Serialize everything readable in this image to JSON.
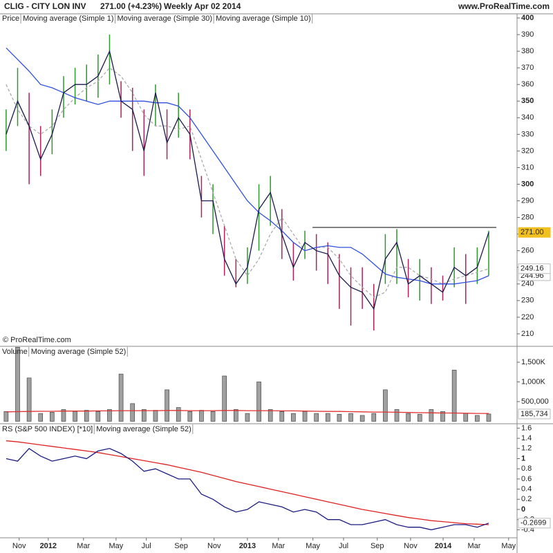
{
  "header": {
    "symbol": "CLIG - CITY LON INV",
    "change": "271.00 (+4.23%)",
    "period": "Weekly",
    "date": "Apr 02 2014",
    "site": "www.ProRealTime.com",
    "copyright": "© ProRealTime.com"
  },
  "chart_data": [
    {
      "type": "ohlc",
      "price_label": "Price",
      "x": [
        -11,
        -8,
        -5,
        -2,
        1,
        4,
        7,
        10,
        13,
        16,
        19,
        22,
        25,
        28,
        31,
        34,
        37,
        40,
        43,
        46,
        49,
        52,
        55,
        58,
        61,
        64,
        67,
        70,
        73,
        76,
        79,
        82,
        85,
        88,
        91,
        94,
        97,
        100,
        103,
        106,
        109,
        112,
        115
      ],
      "xlim": [
        -12.6,
        122.4
      ],
      "xticks": [
        {
          "value": -7.6,
          "label": "Nov"
        },
        {
          "value": 0,
          "label": "2012"
        },
        {
          "value": 9.2,
          "label": "Mar"
        },
        {
          "value": 17.7,
          "label": "May"
        },
        {
          "value": 25.6,
          "label": "Jul"
        },
        {
          "value": 34.7,
          "label": "Sep"
        },
        {
          "value": 43.3,
          "label": "Nov"
        },
        {
          "value": 52,
          "label": "2013"
        },
        {
          "value": 60.1,
          "label": "Mar"
        },
        {
          "value": 69.1,
          "label": "May"
        },
        {
          "value": 77.1,
          "label": "Jul"
        },
        {
          "value": 85.9,
          "label": "Sep"
        },
        {
          "value": 94.6,
          "label": "Nov"
        },
        {
          "value": 103.1,
          "label": "2014"
        },
        {
          "value": 111.2,
          "label": "Mar"
        },
        {
          "value": 120.2,
          "label": "May"
        }
      ],
      "high": [
        345,
        370,
        355,
        335,
        345,
        365,
        370,
        372,
        378,
        390,
        362,
        358,
        345,
        360,
        345,
        355,
        345,
        305,
        300,
        275,
        255,
        262,
        300,
        305,
        285,
        265,
        272,
        270,
        265,
        258,
        250,
        250,
        240,
        270,
        273,
        255,
        255,
        250,
        245,
        262,
        258,
        262,
        272
      ],
      "low": [
        320,
        335,
        300,
        305,
        318,
        340,
        348,
        350,
        352,
        360,
        340,
        320,
        305,
        335,
        315,
        328,
        315,
        280,
        270,
        245,
        238,
        240,
        260,
        275,
        255,
        242,
        255,
        248,
        240,
        225,
        215,
        225,
        212,
        240,
        240,
        232,
        230,
        228,
        230,
        238,
        228,
        240,
        245
      ],
      "up_color": "#2a9a2a",
      "down_color": "#b0205a",
      "ylim": [
        202.9,
        402.5
      ],
      "yticks": [
        210,
        220,
        230,
        240,
        250,
        260,
        270,
        280,
        290,
        300,
        310,
        320,
        330,
        340,
        350,
        360,
        370,
        380,
        390,
        400
      ],
      "resistance": {
        "value": 274,
        "from": 69,
        "to": 117
      },
      "series": [
        {
          "name": "Moving average (Simple 1)",
          "color": "#1a1a4d",
          "values": [
            330,
            350,
            335,
            315,
            330,
            355,
            360,
            360,
            365,
            380,
            350,
            345,
            320,
            355,
            325,
            340,
            330,
            290,
            290,
            255,
            240,
            250,
            285,
            295,
            270,
            250,
            265,
            260,
            258,
            245,
            238,
            235,
            225,
            255,
            265,
            240,
            245,
            240,
            235,
            250,
            245,
            250,
            271
          ],
          "last_label": "271.00"
        },
        {
          "name": "Moving average (Simple 30)",
          "color": "#3050e0",
          "values": [
            382,
            375,
            368,
            360,
            358,
            355,
            352,
            350,
            348,
            350,
            350,
            350,
            350,
            349,
            349,
            347,
            340,
            330,
            320,
            310,
            300,
            290,
            283,
            278,
            272,
            265,
            260,
            262,
            263,
            262,
            262,
            258,
            252,
            246,
            244,
            243,
            242,
            240,
            240,
            240,
            241,
            242,
            244.96
          ],
          "last_label": "244.96"
        },
        {
          "name": "Moving average (Simple 10)",
          "color": "#aaaaaa",
          "dashed": true,
          "values": [
            360,
            345,
            335,
            330,
            335,
            345,
            352,
            358,
            362,
            370,
            365,
            355,
            342,
            335,
            335,
            333,
            335,
            315,
            295,
            275,
            255,
            245,
            255,
            270,
            280,
            270,
            260,
            262,
            262,
            255,
            245,
            238,
            232,
            235,
            250,
            250,
            245,
            243,
            240,
            243,
            245,
            247,
            249.16
          ],
          "last_label": "249.16"
        }
      ]
    },
    {
      "type": "volume",
      "label": "Volume",
      "bar_color": "#a0a0a0",
      "ylim": [
        -44000,
        1886000
      ],
      "yticks": [
        {
          "value": 500000,
          "label": "500,000"
        },
        {
          "value": 1000000,
          "label": "1,000K"
        },
        {
          "value": 1500000,
          "label": "1,500K"
        }
      ],
      "values": [
        250000,
        1880000,
        1100000,
        200000,
        230000,
        300000,
        250000,
        280000,
        250000,
        300000,
        1200000,
        450000,
        300000,
        280000,
        800000,
        350000,
        250000,
        280000,
        250000,
        1150000,
        300000,
        200000,
        1000000,
        300000,
        250000,
        200000,
        250000,
        200000,
        200000,
        180000,
        200000,
        150000,
        200000,
        800000,
        300000,
        200000,
        180000,
        300000,
        250000,
        1300000,
        200000,
        150000,
        185734
      ],
      "last_label": "185,734",
      "series": [
        {
          "name": "Moving average (Simple 52)",
          "color": "#e03030",
          "values": [
            240000,
            245000,
            250000,
            255000,
            255000,
            260000,
            260000,
            260000,
            265000,
            265000,
            270000,
            270000,
            270000,
            270000,
            275000,
            275000,
            270000,
            270000,
            270000,
            275000,
            275000,
            270000,
            270000,
            270000,
            265000,
            265000,
            260000,
            255000,
            250000,
            250000,
            245000,
            240000,
            235000,
            235000,
            230000,
            225000,
            220000,
            215000,
            210000,
            210000,
            205000,
            200000,
            200000
          ]
        }
      ]
    },
    {
      "type": "line",
      "ylim": [
        -0.558,
        1.673
      ],
      "yticks": [
        -0.4,
        -0.2,
        0,
        0.2,
        0.4,
        0.6,
        0.8,
        1,
        1.2,
        1.4,
        1.6
      ],
      "series": [
        {
          "name": "RS (S&P 500 INDEX) [*10]",
          "color": "#1a1a80",
          "values": [
            1.0,
            0.95,
            1.2,
            1.05,
            0.95,
            1.0,
            1.05,
            1.0,
            1.15,
            1.2,
            1.1,
            0.95,
            0.75,
            0.8,
            0.7,
            0.6,
            0.6,
            0.3,
            0.2,
            0.05,
            -0.05,
            0,
            0.15,
            0.1,
            0.05,
            -0.05,
            0,
            -0.05,
            -0.2,
            -0.2,
            -0.3,
            -0.3,
            -0.25,
            -0.2,
            -0.3,
            -0.35,
            -0.35,
            -0.4,
            -0.35,
            -0.3,
            -0.3,
            -0.35,
            -0.2699
          ],
          "last_label": "-0.2699"
        },
        {
          "name": "Moving average (Simple 52)",
          "color": "#e02020",
          "values": [
            1.35,
            1.33,
            1.3,
            1.27,
            1.24,
            1.21,
            1.18,
            1.15,
            1.12,
            1.08,
            1.04,
            1.0,
            0.96,
            0.92,
            0.88,
            0.83,
            0.78,
            0.73,
            0.67,
            0.61,
            0.55,
            0.5,
            0.45,
            0.4,
            0.35,
            0.3,
            0.25,
            0.2,
            0.15,
            0.1,
            0.05,
            0,
            -0.04,
            -0.08,
            -0.12,
            -0.16,
            -0.19,
            -0.22,
            -0.24,
            -0.26,
            -0.28,
            -0.29,
            -0.3
          ]
        }
      ]
    }
  ]
}
